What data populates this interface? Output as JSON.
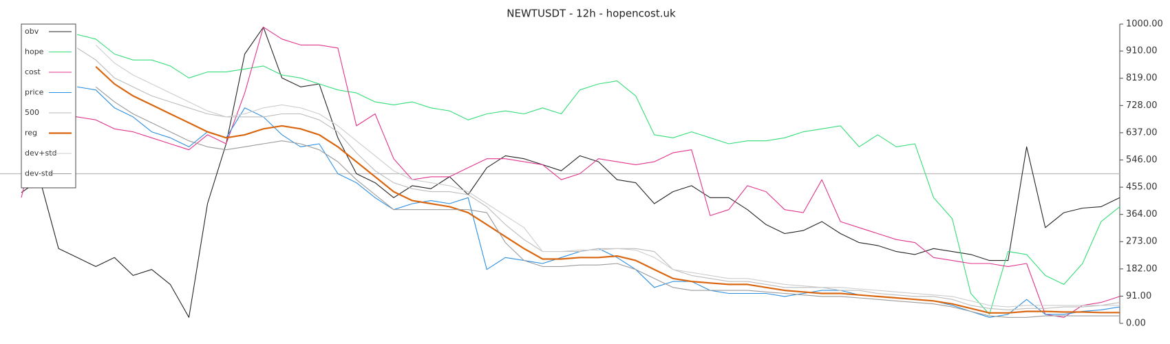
{
  "chart_data": {
    "type": "line",
    "title": "NEWTUSDT - 12h - hopencost.uk",
    "y_axis_side": "right",
    "legend": "upper left",
    "ylim": [
      0,
      1000
    ],
    "yticks": [
      {
        "value": 0,
        "label": "0.00"
      },
      {
        "value": 91,
        "label": "91.00"
      },
      {
        "value": 182,
        "label": "182.00"
      },
      {
        "value": 273,
        "label": "273.00"
      },
      {
        "value": 364,
        "label": "364.00"
      },
      {
        "value": 455,
        "label": "455.00"
      },
      {
        "value": 546,
        "label": "546.00"
      },
      {
        "value": 637,
        "label": "637.00"
      },
      {
        "value": 728,
        "label": "728.00"
      },
      {
        "value": 819,
        "label": "819.00"
      },
      {
        "value": 910,
        "label": "910.00"
      },
      {
        "value": 1000,
        "label": "1000.00"
      }
    ],
    "hline": 500,
    "hline_color": "#bbbbbb",
    "series": [
      {
        "name": "obv",
        "color": "#222222",
        "line_width": 1,
        "values": [
          437,
          480,
          250,
          220,
          190,
          220,
          160,
          180,
          130,
          20,
          400,
          600,
          900,
          990,
          820,
          790,
          800,
          620,
          500,
          470,
          420,
          460,
          450,
          490,
          430,
          520,
          560,
          550,
          530,
          510,
          560,
          540,
          480,
          470,
          400,
          440,
          460,
          420,
          420,
          380,
          330,
          300,
          310,
          340,
          300,
          270,
          260,
          240,
          230,
          250,
          240,
          230,
          210,
          210,
          590,
          320,
          370,
          385,
          390,
          420
        ]
      },
      {
        "name": "hope",
        "color": "#33dd77",
        "line_width": 1,
        "values": [
          null,
          null,
          null,
          965,
          950,
          900,
          880,
          880,
          860,
          820,
          840,
          840,
          850,
          860,
          830,
          820,
          800,
          780,
          770,
          740,
          730,
          740,
          720,
          710,
          680,
          700,
          710,
          700,
          720,
          700,
          780,
          800,
          810,
          760,
          630,
          620,
          640,
          620,
          600,
          610,
          610,
          620,
          640,
          650,
          660,
          590,
          630,
          590,
          600,
          420,
          350,
          100,
          30,
          240,
          230,
          160,
          130,
          200,
          340,
          390
        ]
      },
      {
        "name": "cost",
        "color": "#e0338a",
        "line_width": 1,
        "values": [
          420,
          680,
          700,
          690,
          680,
          650,
          640,
          620,
          600,
          580,
          630,
          600,
          770,
          990,
          950,
          930,
          930,
          920,
          660,
          700,
          550,
          480,
          490,
          490,
          520,
          550,
          550,
          540,
          530,
          480,
          500,
          550,
          540,
          530,
          540,
          570,
          580,
          360,
          380,
          460,
          440,
          380,
          370,
          480,
          340,
          320,
          300,
          280,
          270,
          220,
          210,
          200,
          200,
          190,
          200,
          30,
          20,
          60,
          70,
          90
        ]
      },
      {
        "name": "price",
        "color": "#2b8ee0",
        "line_width": 1,
        "values": [
          null,
          null,
          null,
          790,
          780,
          720,
          690,
          640,
          620,
          590,
          640,
          620,
          720,
          690,
          630,
          590,
          600,
          500,
          470,
          420,
          380,
          400,
          410,
          400,
          420,
          180,
          220,
          210,
          200,
          220,
          240,
          250,
          220,
          180,
          120,
          140,
          140,
          110,
          100,
          100,
          100,
          90,
          100,
          110,
          110,
          95,
          90,
          85,
          80,
          75,
          60,
          40,
          20,
          30,
          80,
          30,
          30,
          40,
          45,
          55
        ]
      },
      {
        "name": "500",
        "color": "#bbbbbb",
        "line_width": 1,
        "values": [
          null,
          null,
          null,
          920,
          880,
          820,
          790,
          760,
          740,
          720,
          700,
          690,
          690,
          690,
          700,
          700,
          680,
          640,
          570,
          510,
          470,
          450,
          440,
          440,
          430,
          390,
          330,
          280,
          240,
          240,
          240,
          250,
          250,
          250,
          240,
          180,
          160,
          150,
          140,
          140,
          130,
          120,
          120,
          120,
          110,
          110,
          100,
          95,
          90,
          90,
          80,
          60,
          50,
          45,
          50,
          50,
          55,
          55,
          60,
          70
        ]
      },
      {
        "name": "reg",
        "color": "#d9650e",
        "line_width": 2,
        "values": [
          null,
          null,
          null,
          null,
          858,
          800,
          760,
          730,
          700,
          670,
          640,
          620,
          630,
          650,
          660,
          650,
          630,
          590,
          540,
          490,
          440,
          410,
          400,
          390,
          370,
          330,
          290,
          250,
          215,
          215,
          220,
          220,
          225,
          210,
          180,
          150,
          140,
          135,
          130,
          130,
          120,
          110,
          105,
          100,
          100,
          95,
          90,
          85,
          80,
          75,
          65,
          50,
          35,
          35,
          40,
          40,
          38,
          38,
          36,
          36
        ]
      },
      {
        "name": "dev+std",
        "color": "#cccccc",
        "line_width": 1,
        "values": [
          null,
          null,
          null,
          null,
          930,
          870,
          830,
          800,
          770,
          740,
          710,
          690,
          700,
          720,
          730,
          720,
          700,
          660,
          610,
          560,
          510,
          480,
          470,
          460,
          440,
          400,
          360,
          320,
          240,
          240,
          245,
          245,
          250,
          245,
          220,
          180,
          170,
          160,
          150,
          150,
          140,
          130,
          125,
          120,
          120,
          115,
          110,
          105,
          100,
          95,
          90,
          75,
          60,
          55,
          60,
          60,
          60,
          60,
          60,
          60
        ]
      },
      {
        "name": "dev-std",
        "color": "#999999",
        "line_width": 1,
        "values": [
          null,
          null,
          null,
          null,
          790,
          740,
          700,
          670,
          640,
          610,
          590,
          580,
          590,
          600,
          610,
          600,
          580,
          540,
          480,
          430,
          380,
          380,
          380,
          380,
          380,
          370,
          270,
          210,
          190,
          190,
          195,
          195,
          200,
          180,
          150,
          120,
          110,
          110,
          110,
          110,
          105,
          100,
          95,
          90,
          90,
          85,
          80,
          75,
          70,
          65,
          55,
          40,
          25,
          20,
          20,
          25,
          25,
          25,
          25,
          25
        ]
      }
    ]
  }
}
